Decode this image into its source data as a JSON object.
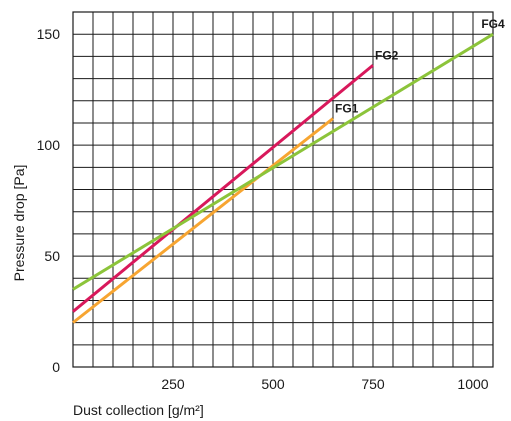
{
  "chart_data": {
    "type": "line",
    "title": "",
    "xlabel": "Dust collection [g/m²]",
    "ylabel": "Pressure drop [Pa]",
    "xlim": [
      0,
      1050
    ],
    "ylim": [
      0,
      160
    ],
    "x_ticks": [
      250,
      500,
      750,
      1000
    ],
    "y_ticks": [
      0,
      50,
      100,
      150
    ],
    "grid": true,
    "series": [
      {
        "name": "FG1",
        "color": "#f7a531",
        "x": [
          0,
          650
        ],
        "y": [
          20,
          112
        ]
      },
      {
        "name": "FG2",
        "color": "#d8185b",
        "x": [
          0,
          750
        ],
        "y": [
          25,
          136
        ]
      },
      {
        "name": "FG4",
        "color": "#8cc43a",
        "x": [
          0,
          1050
        ],
        "y": [
          35,
          150
        ]
      }
    ]
  }
}
